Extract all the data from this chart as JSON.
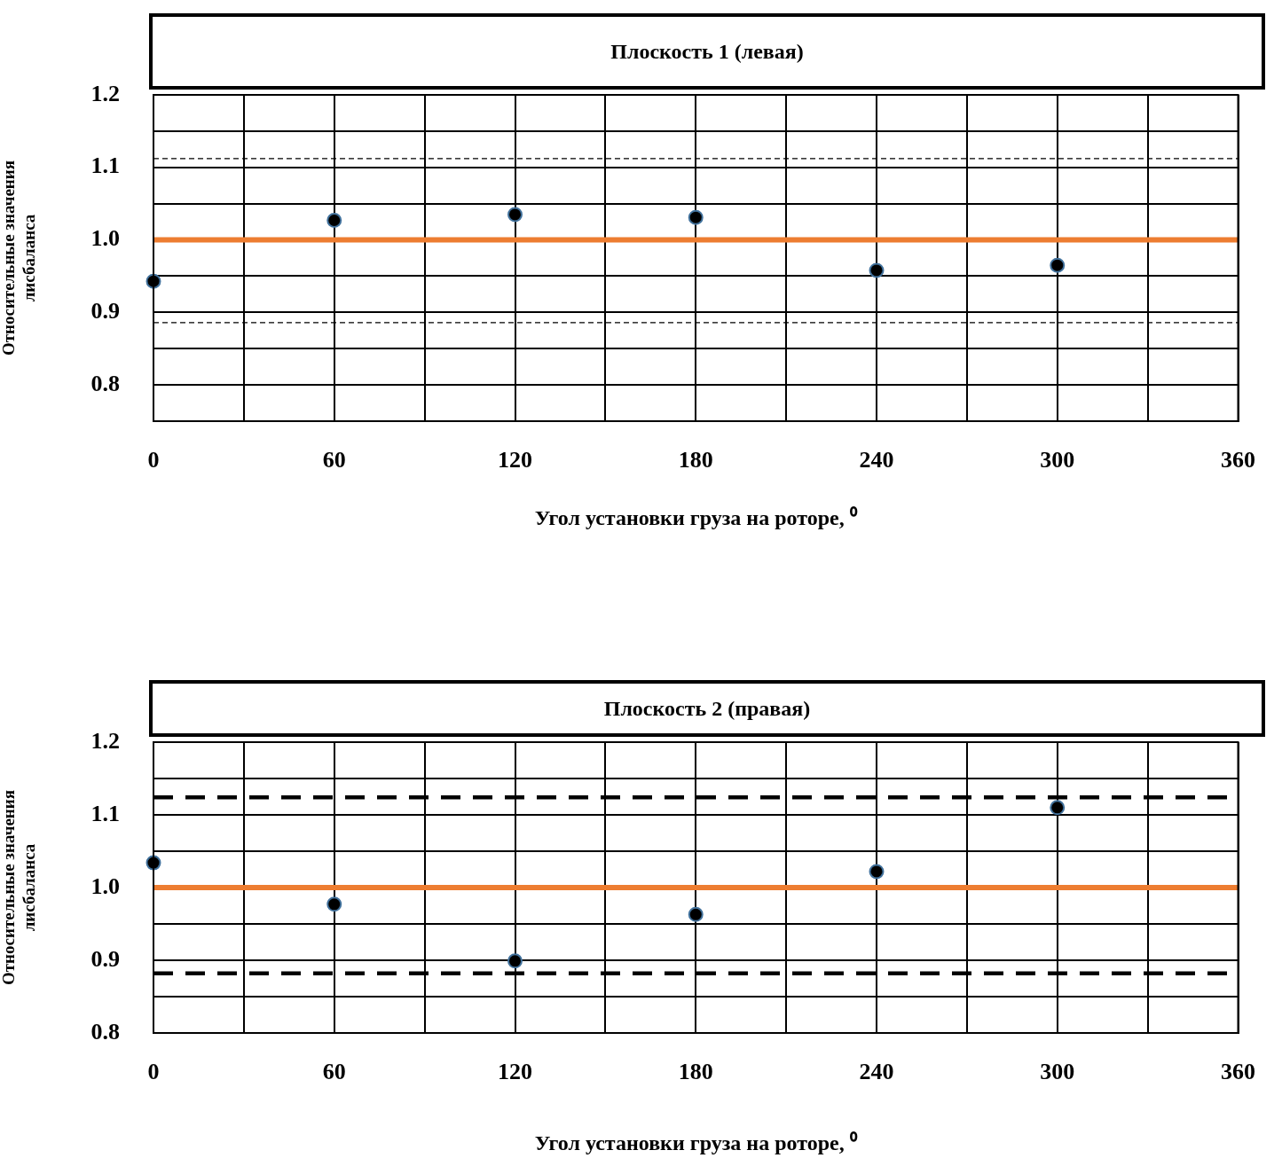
{
  "chart_data": [
    {
      "type": "scatter",
      "title": "Плоскость 1 (левая)",
      "xlabel": "Угол установки груза на роторе, ⁰",
      "ylabel": "Относительные значения\nлисбаланса",
      "x": [
        0,
        60,
        120,
        180,
        240,
        300
      ],
      "series": [
        {
          "color": "#000000",
          "values": [
            0.943,
            1.027,
            1.035,
            1.031,
            0.958,
            0.965
          ]
        }
      ],
      "marker": "circle",
      "grid": true,
      "legend": false,
      "xlim": [
        0,
        360
      ],
      "xticks": [
        0,
        {
          "value": 30,
          "label": null
        },
        60,
        {
          "value": 90,
          "label": null
        },
        120,
        {
          "value": 150,
          "label": null
        },
        180,
        {
          "value": 210,
          "label": null
        },
        240,
        {
          "value": 270,
          "label": null
        },
        300,
        {
          "value": 330,
          "label": null
        },
        360
      ],
      "ylim": [
        0.75,
        1.2
      ],
      "yticks": [
        {
          "value": 0.75,
          "label": null
        },
        0.8,
        {
          "value": 0.85,
          "label": null
        },
        0.9,
        {
          "value": 0.95,
          "label": null
        },
        {
          "value": 1,
          "label": "1.0"
        },
        {
          "value": 1.05,
          "label": null
        },
        1.1,
        {
          "value": 1.15,
          "label": null
        },
        1.2
      ],
      "ref_lines": [
        {
          "axis": "y",
          "value": 1,
          "color": "#ed7d31",
          "line_style": "solid"
        },
        {
          "axis": "y",
          "value": 1.112,
          "color": "#000000",
          "line_style": "dashed"
        },
        {
          "axis": "y",
          "value": 0.886,
          "color": "#000000",
          "line_style": "dashed"
        }
      ]
    },
    {
      "type": "scatter",
      "title": "Плоскость 2 (правая)",
      "xlabel": "Угол установки груза на роторе, ⁰",
      "ylabel": "Относительные значения\nлисбаланса",
      "x": [
        0,
        60,
        120,
        180,
        240,
        300
      ],
      "series": [
        {
          "color": "#000000",
          "values": [
            1.034,
            0.977,
            0.899,
            0.963,
            1.022,
            1.11
          ]
        }
      ],
      "marker": "circle",
      "grid": true,
      "legend": false,
      "xlim": [
        0,
        360
      ],
      "xticks": [
        0,
        {
          "value": 30,
          "label": null
        },
        60,
        {
          "value": 90,
          "label": null
        },
        120,
        {
          "value": 150,
          "label": null
        },
        180,
        {
          "value": 210,
          "label": null
        },
        240,
        {
          "value": 270,
          "label": null
        },
        300,
        {
          "value": 330,
          "label": null
        },
        360
      ],
      "ylim": [
        0.8,
        1.2
      ],
      "yticks": [
        0.8,
        {
          "value": 0.85,
          "label": null
        },
        0.9,
        {
          "value": 0.95,
          "label": null
        },
        {
          "value": 1,
          "label": "1.0"
        },
        {
          "value": 1.05,
          "label": null
        },
        1.1,
        {
          "value": 1.15,
          "label": null
        },
        1.2
      ],
      "ref_lines": [
        {
          "axis": "y",
          "value": 1,
          "color": "#ed7d31",
          "line_style": "solid"
        },
        {
          "axis": "y",
          "value": 1.124,
          "color": "#000000",
          "line_style": "dashed"
        },
        {
          "axis": "y",
          "value": 0.882,
          "color": "#000000",
          "line_style": "dashed"
        }
      ]
    }
  ]
}
